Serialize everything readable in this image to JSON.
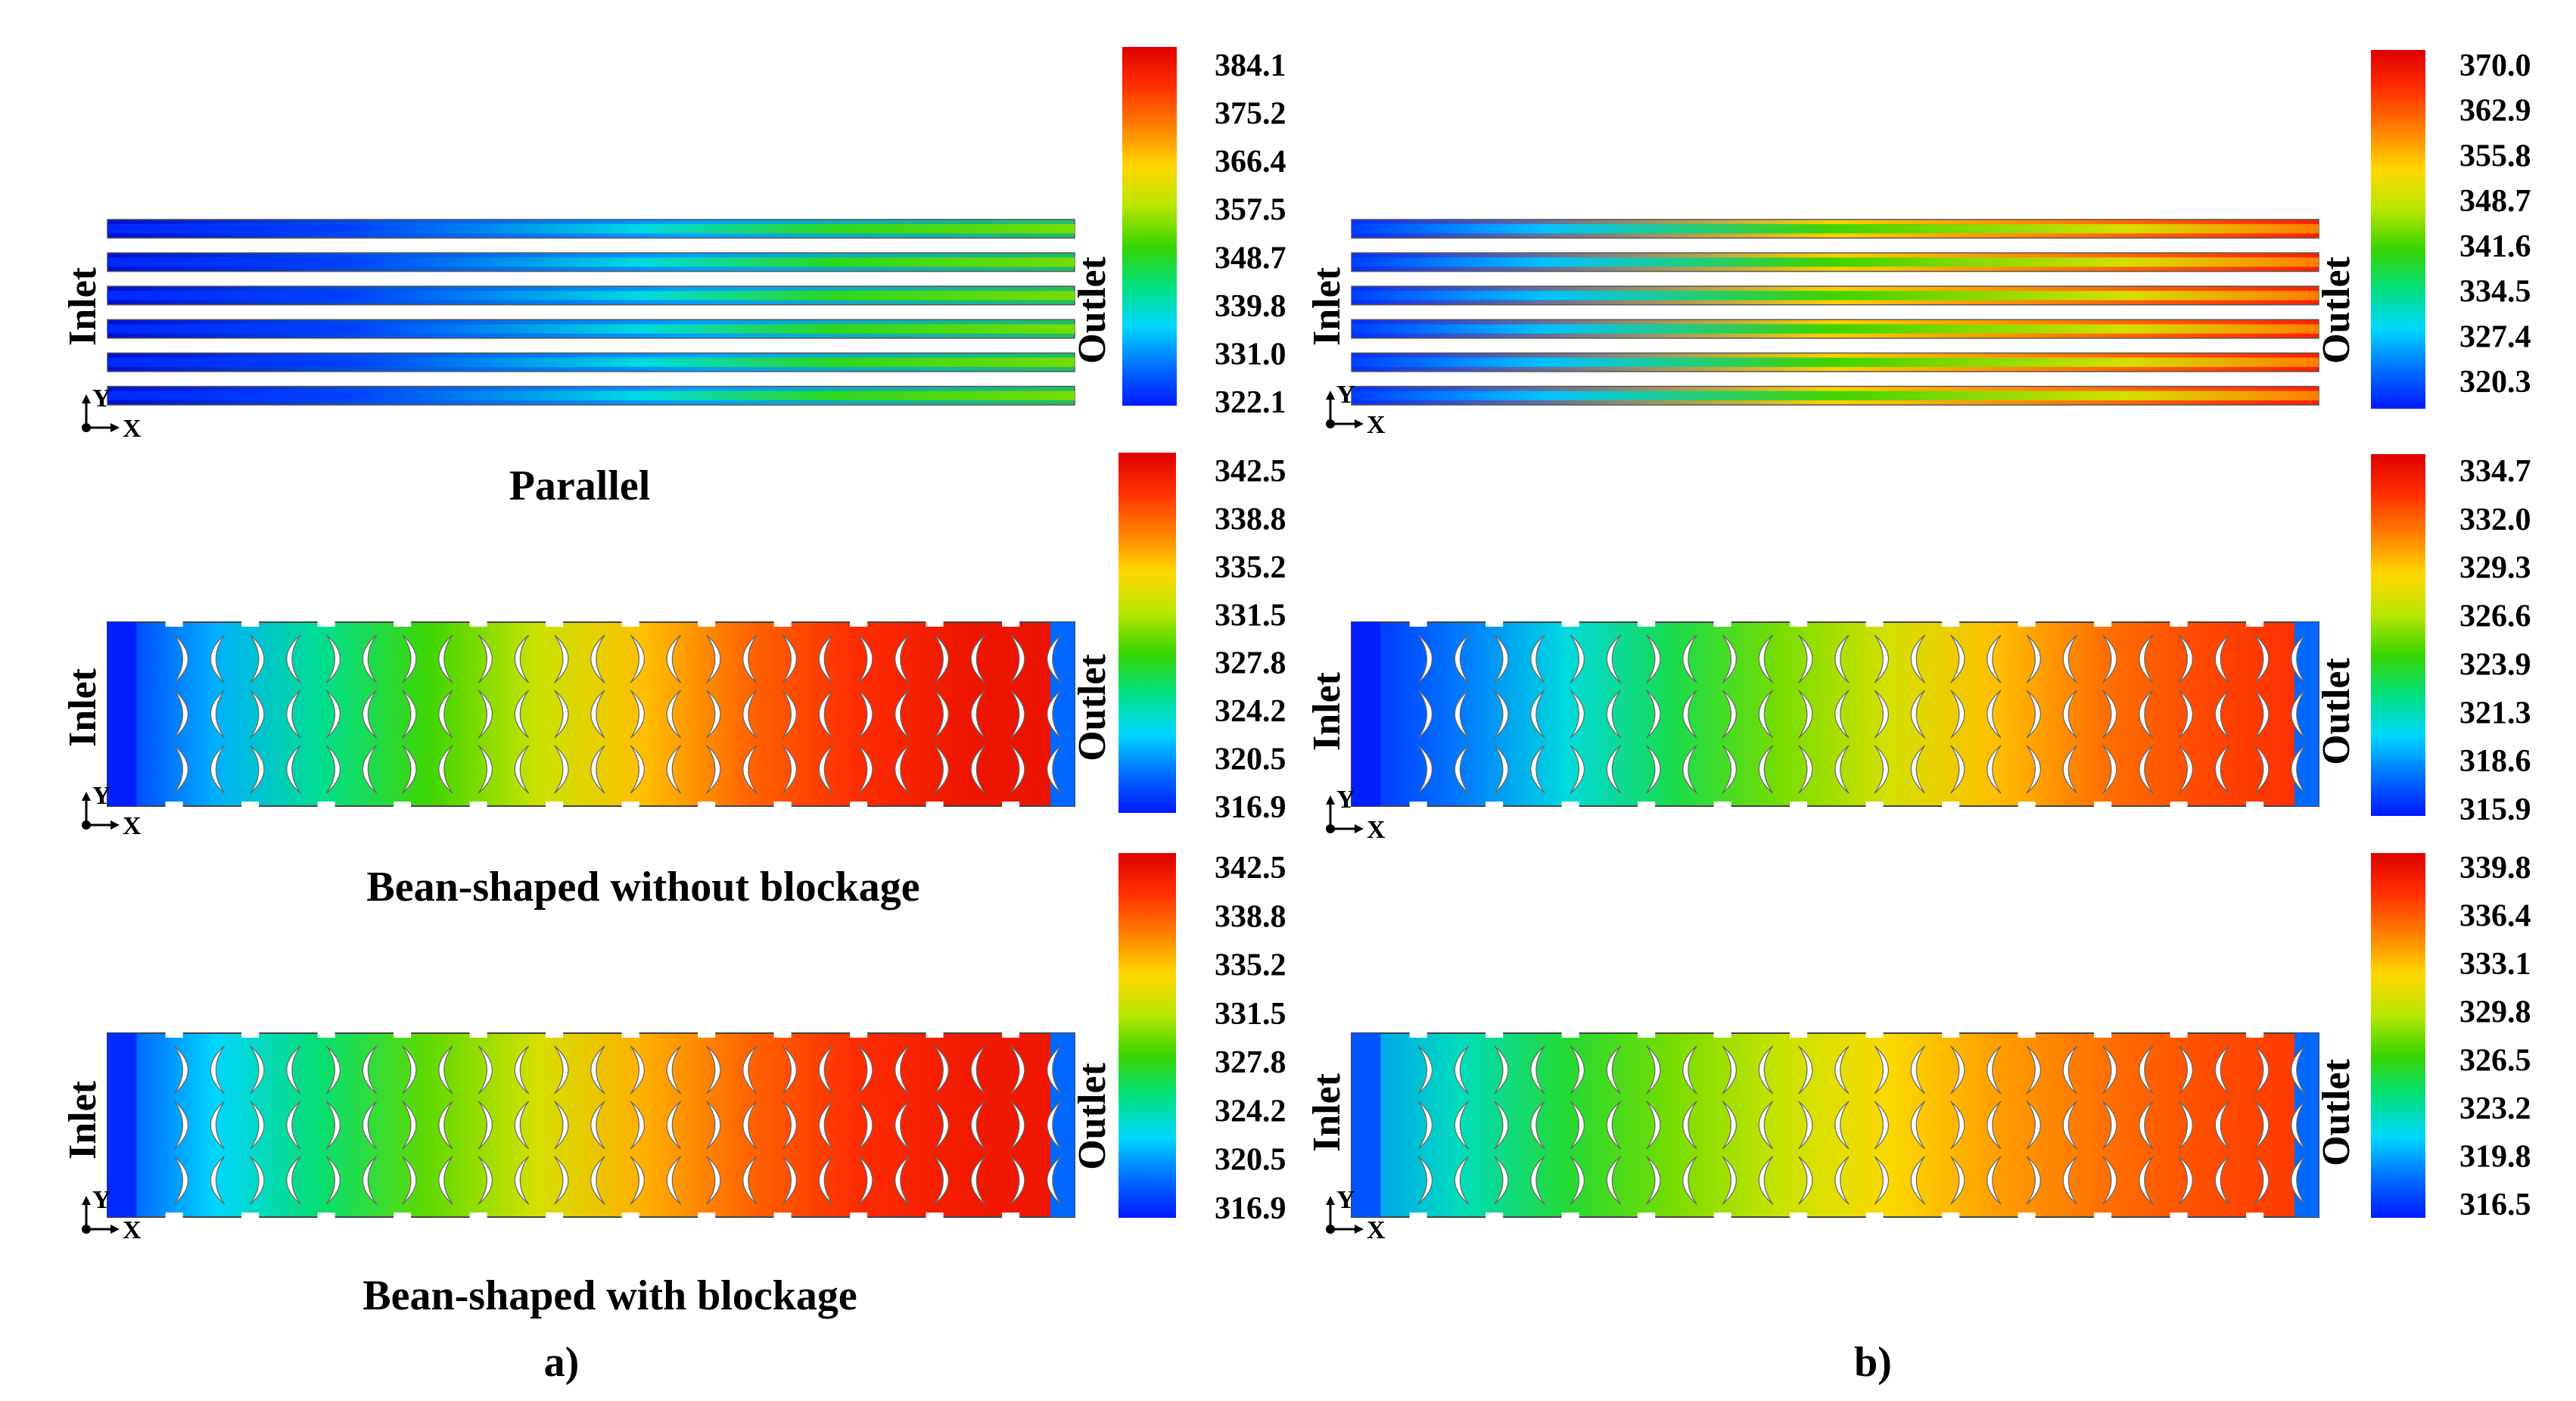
{
  "labels": {
    "inlet": "Inlet",
    "outlet": "Outlet",
    "axis_x": "X",
    "axis_y": "Y"
  },
  "colormap": [
    "#0018ff",
    "#0070ff",
    "#00d8ff",
    "#00e080",
    "#38d400",
    "#b8e600",
    "#ffd800",
    "#ff8000",
    "#ff3000",
    "#e00000"
  ],
  "columns": [
    {
      "label": "a)",
      "panels": [
        {
          "kind": "parallel",
          "caption": "Parallel",
          "ticks": [
            "384.1",
            "375.2",
            "366.4",
            "357.5",
            "348.7",
            "339.8",
            "331.0",
            "322.1"
          ],
          "bar_top_color": "#ff5000"
        },
        {
          "kind": "bean",
          "caption": "Bean-shaped without blockage",
          "ticks": [
            "342.5",
            "338.8",
            "335.2",
            "331.5",
            "327.8",
            "324.2",
            "320.5",
            "316.9"
          ],
          "field_stops": [
            0.02,
            0.18,
            0.32,
            0.45,
            0.58,
            0.7,
            0.82,
            0.9,
            0.95,
            0.96
          ]
        },
        {
          "kind": "bean",
          "caption": "Bean-shaped with blockage",
          "ticks": [
            "342.5",
            "338.8",
            "335.2",
            "331.5",
            "327.8",
            "324.2",
            "320.5",
            "316.9"
          ],
          "field_stops": [
            0.05,
            0.22,
            0.35,
            0.48,
            0.6,
            0.72,
            0.82,
            0.9,
            0.94,
            0.95
          ]
        }
      ]
    },
    {
      "label": "b)",
      "panels": [
        {
          "kind": "parallel",
          "caption": "",
          "ticks": [
            "370.0",
            "362.9",
            "355.8",
            "348.7",
            "341.6",
            "334.5",
            "327.4",
            "320.3"
          ],
          "bar_top_color": "#ff3000"
        },
        {
          "kind": "bean",
          "caption": "",
          "ticks": [
            "334.7",
            "332.0",
            "329.3",
            "326.6",
            "323.9",
            "321.3",
            "318.6",
            "315.9"
          ],
          "field_stops": [
            0.02,
            0.12,
            0.25,
            0.38,
            0.5,
            0.6,
            0.7,
            0.8,
            0.86,
            0.9
          ]
        },
        {
          "kind": "bean",
          "caption": "",
          "ticks": [
            "339.8",
            "336.4",
            "333.1",
            "329.8",
            "326.5",
            "323.2",
            "319.8",
            "316.5"
          ],
          "field_stops": [
            0.15,
            0.28,
            0.4,
            0.5,
            0.58,
            0.66,
            0.74,
            0.8,
            0.85,
            0.88
          ]
        }
      ]
    }
  ]
}
